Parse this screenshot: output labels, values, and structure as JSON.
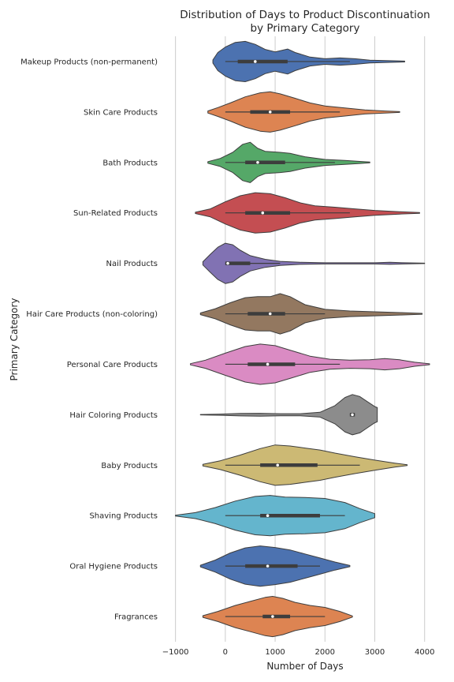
{
  "chart_data": {
    "type": "violin",
    "orientation": "horizontal",
    "title_line1": "Distribution of Days to Product Discontinuation",
    "title_line2": "by Primary Category",
    "xlabel": "Number of Days",
    "ylabel": "Primary Category",
    "xlim": [
      -1200,
      4400
    ],
    "xticks": [
      -1000,
      0,
      1000,
      2000,
      3000,
      4000
    ],
    "xtick_labels": [
      "−1000",
      "0",
      "1000",
      "2000",
      "3000",
      "4000"
    ],
    "grid": "x",
    "categories": [
      {
        "label": "Makeup Products (non-permanent)",
        "color": "#4c72b0",
        "range": [
          -250,
          3600
        ],
        "q1": 250,
        "median": 600,
        "q3": 1250,
        "whiskers": [
          0,
          2500
        ],
        "density": [
          [
            -250,
            0.08
          ],
          [
            -150,
            0.45
          ],
          [
            0,
            0.72
          ],
          [
            200,
            0.95
          ],
          [
            400,
            1.0
          ],
          [
            600,
            0.85
          ],
          [
            800,
            0.6
          ],
          [
            1000,
            0.48
          ],
          [
            1250,
            0.62
          ],
          [
            1400,
            0.45
          ],
          [
            1700,
            0.22
          ],
          [
            2000,
            0.14
          ],
          [
            2300,
            0.18
          ],
          [
            2600,
            0.14
          ],
          [
            2900,
            0.07
          ],
          [
            3300,
            0.04
          ],
          [
            3600,
            0.02
          ]
        ]
      },
      {
        "label": "Skin Care Products ",
        "color": "#dd8452",
        "range": [
          -350,
          3500
        ],
        "q1": 500,
        "median": 900,
        "q3": 1300,
        "whiskers": [
          0,
          2300
        ],
        "density": [
          [
            -350,
            0.05
          ],
          [
            -150,
            0.22
          ],
          [
            100,
            0.45
          ],
          [
            400,
            0.75
          ],
          [
            700,
            0.95
          ],
          [
            900,
            1.0
          ],
          [
            1100,
            0.9
          ],
          [
            1400,
            0.68
          ],
          [
            1700,
            0.45
          ],
          [
            2000,
            0.3
          ],
          [
            2400,
            0.2
          ],
          [
            2800,
            0.1
          ],
          [
            3200,
            0.05
          ],
          [
            3500,
            0.02
          ]
        ]
      },
      {
        "label": "Bath Products",
        "color": "#55a868",
        "range": [
          -350,
          2900
        ],
        "q1": 400,
        "median": 650,
        "q3": 1200,
        "whiskers": [
          0,
          2200
        ],
        "density": [
          [
            -350,
            0.04
          ],
          [
            -100,
            0.2
          ],
          [
            150,
            0.5
          ],
          [
            350,
            0.9
          ],
          [
            500,
            1.0
          ],
          [
            650,
            0.7
          ],
          [
            800,
            0.55
          ],
          [
            1100,
            0.5
          ],
          [
            1300,
            0.45
          ],
          [
            1600,
            0.28
          ],
          [
            2000,
            0.15
          ],
          [
            2400,
            0.1
          ],
          [
            2700,
            0.05
          ],
          [
            2900,
            0.02
          ]
        ]
      },
      {
        "label": "Sun-Related Products",
        "color": "#c44e52",
        "range": [
          -600,
          3900
        ],
        "q1": 400,
        "median": 750,
        "q3": 1300,
        "whiskers": [
          0,
          2500
        ],
        "density": [
          [
            -600,
            0.03
          ],
          [
            -300,
            0.2
          ],
          [
            0,
            0.55
          ],
          [
            300,
            0.85
          ],
          [
            600,
            1.0
          ],
          [
            900,
            0.95
          ],
          [
            1200,
            0.75
          ],
          [
            1500,
            0.5
          ],
          [
            1800,
            0.35
          ],
          [
            2200,
            0.28
          ],
          [
            2600,
            0.2
          ],
          [
            3000,
            0.12
          ],
          [
            3500,
            0.06
          ],
          [
            3900,
            0.02
          ]
        ]
      },
      {
        "label": "Nail Products",
        "color": "#8172b3",
        "range": [
          -450,
          4000
        ],
        "q1": 0,
        "median": 50,
        "q3": 500,
        "whiskers": [
          0,
          1100
        ],
        "density": [
          [
            -450,
            0.08
          ],
          [
            -300,
            0.45
          ],
          [
            -150,
            0.8
          ],
          [
            0,
            1.0
          ],
          [
            150,
            0.92
          ],
          [
            300,
            0.65
          ],
          [
            500,
            0.38
          ],
          [
            800,
            0.2
          ],
          [
            1100,
            0.1
          ],
          [
            1500,
            0.05
          ],
          [
            2000,
            0.03
          ],
          [
            2600,
            0.03
          ],
          [
            3000,
            0.03
          ],
          [
            3300,
            0.05
          ],
          [
            3600,
            0.03
          ],
          [
            4000,
            0.01
          ]
        ]
      },
      {
        "label": "Hair Care Products (non-coloring)",
        "color": "#937860",
        "range": [
          -500,
          3950
        ],
        "q1": 450,
        "median": 900,
        "q3": 1200,
        "whiskers": [
          0,
          2000
        ],
        "density": [
          [
            -500,
            0.04
          ],
          [
            -200,
            0.25
          ],
          [
            100,
            0.55
          ],
          [
            400,
            0.8
          ],
          [
            650,
            0.85
          ],
          [
            900,
            0.85
          ],
          [
            1100,
            1.0
          ],
          [
            1300,
            0.85
          ],
          [
            1600,
            0.45
          ],
          [
            2000,
            0.22
          ],
          [
            2500,
            0.14
          ],
          [
            3000,
            0.1
          ],
          [
            3500,
            0.06
          ],
          [
            3950,
            0.02
          ]
        ]
      },
      {
        "label": "Personal Care Products",
        "color": "#da8bc3",
        "range": [
          -700,
          4100
        ],
        "q1": 450,
        "median": 850,
        "q3": 1400,
        "whiskers": [
          0,
          2300
        ],
        "density": [
          [
            -700,
            0.03
          ],
          [
            -400,
            0.2
          ],
          [
            0,
            0.55
          ],
          [
            400,
            0.88
          ],
          [
            700,
            1.0
          ],
          [
            1000,
            0.92
          ],
          [
            1300,
            0.7
          ],
          [
            1700,
            0.4
          ],
          [
            2100,
            0.25
          ],
          [
            2500,
            0.2
          ],
          [
            2900,
            0.22
          ],
          [
            3200,
            0.28
          ],
          [
            3500,
            0.22
          ],
          [
            3800,
            0.1
          ],
          [
            4100,
            0.02
          ]
        ]
      },
      {
        "label": "Hair Coloring Products",
        "color": "#8c8c8c",
        "range": [
          -500,
          3050
        ],
        "q1": 2500,
        "median": 2550,
        "q3": 2600,
        "whiskers": [
          2500,
          2600
        ],
        "density": [
          [
            -500,
            0.01
          ],
          [
            -100,
            0.03
          ],
          [
            300,
            0.06
          ],
          [
            700,
            0.07
          ],
          [
            1100,
            0.05
          ],
          [
            1500,
            0.05
          ],
          [
            1900,
            0.12
          ],
          [
            2200,
            0.45
          ],
          [
            2400,
            0.85
          ],
          [
            2550,
            1.0
          ],
          [
            2700,
            0.9
          ],
          [
            2850,
            0.65
          ],
          [
            3000,
            0.4
          ],
          [
            3050,
            0.35
          ]
        ]
      },
      {
        "label": "Baby Products",
        "color": "#ccb974",
        "range": [
          -450,
          3650
        ],
        "q1": 700,
        "median": 1050,
        "q3": 1850,
        "whiskers": [
          0,
          2700
        ],
        "density": [
          [
            -450,
            0.04
          ],
          [
            -100,
            0.22
          ],
          [
            300,
            0.5
          ],
          [
            700,
            0.82
          ],
          [
            1000,
            1.0
          ],
          [
            1300,
            0.95
          ],
          [
            1600,
            0.85
          ],
          [
            1900,
            0.75
          ],
          [
            2200,
            0.6
          ],
          [
            2600,
            0.42
          ],
          [
            3000,
            0.25
          ],
          [
            3400,
            0.1
          ],
          [
            3650,
            0.02
          ]
        ]
      },
      {
        "label": "Shaving Products",
        "color": "#64b5cd",
        "range": [
          -1000,
          3000
        ],
        "q1": 700,
        "median": 850,
        "q3": 1900,
        "whiskers": [
          0,
          2400
        ],
        "density": [
          [
            -1000,
            0.02
          ],
          [
            -600,
            0.15
          ],
          [
            -200,
            0.4
          ],
          [
            200,
            0.72
          ],
          [
            600,
            0.95
          ],
          [
            900,
            1.0
          ],
          [
            1200,
            0.92
          ],
          [
            1600,
            0.9
          ],
          [
            2000,
            0.85
          ],
          [
            2400,
            0.65
          ],
          [
            2700,
            0.35
          ],
          [
            3000,
            0.1
          ]
        ]
      },
      {
        "label": "Oral Hygiene Products",
        "color": "#4c72b0",
        "range": [
          -500,
          2500
        ],
        "q1": 400,
        "median": 850,
        "q3": 1450,
        "whiskers": [
          0,
          1900
        ],
        "density": [
          [
            -500,
            0.04
          ],
          [
            -200,
            0.3
          ],
          [
            100,
            0.65
          ],
          [
            400,
            0.9
          ],
          [
            700,
            1.0
          ],
          [
            1000,
            0.92
          ],
          [
            1300,
            0.8
          ],
          [
            1600,
            0.6
          ],
          [
            1900,
            0.4
          ],
          [
            2200,
            0.2
          ],
          [
            2500,
            0.03
          ]
        ]
      },
      {
        "label": "Fragrances",
        "color": "#dd8452",
        "range": [
          -450,
          2550
        ],
        "q1": 750,
        "median": 950,
        "q3": 1300,
        "whiskers": [
          0,
          2000
        ],
        "density": [
          [
            -450,
            0.04
          ],
          [
            -150,
            0.25
          ],
          [
            200,
            0.55
          ],
          [
            500,
            0.75
          ],
          [
            800,
            0.95
          ],
          [
            950,
            1.0
          ],
          [
            1150,
            0.9
          ],
          [
            1400,
            0.7
          ],
          [
            1700,
            0.55
          ],
          [
            2000,
            0.45
          ],
          [
            2300,
            0.25
          ],
          [
            2550,
            0.03
          ]
        ]
      }
    ]
  }
}
